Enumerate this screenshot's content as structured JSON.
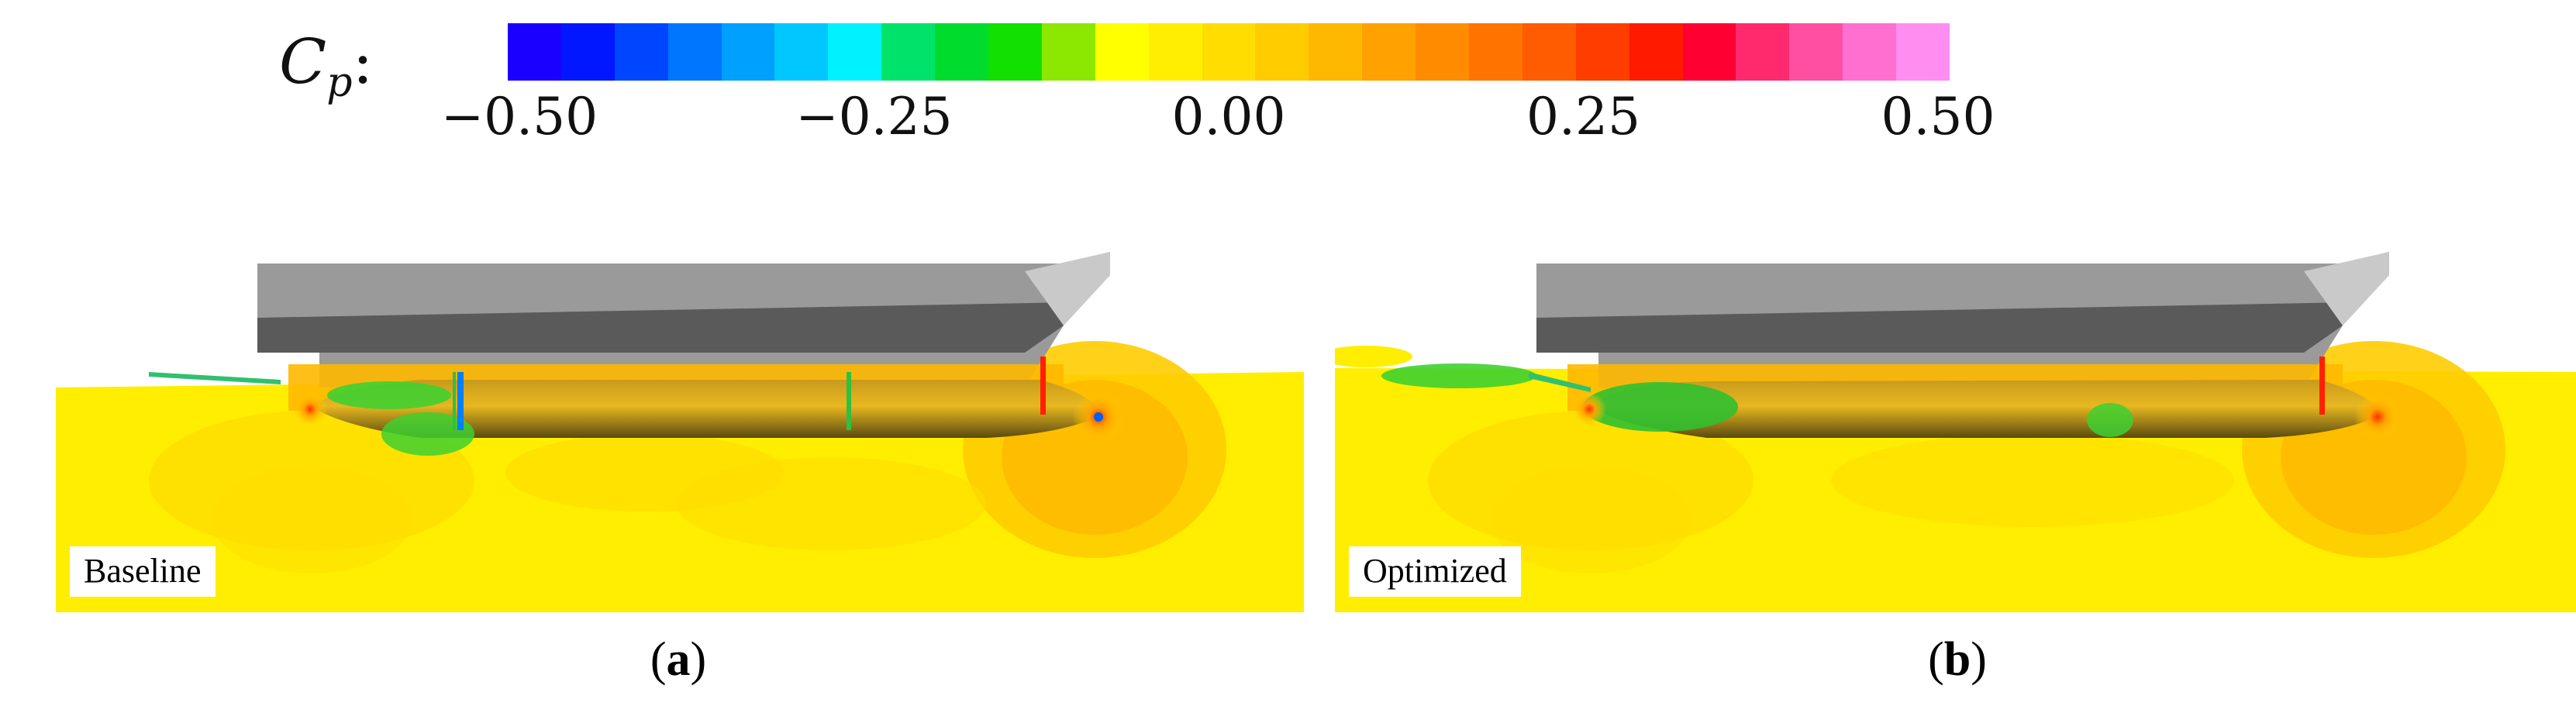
{
  "colorbar": {
    "label": "Cp:",
    "label_main": "C",
    "label_sub": "p",
    "label_colon": ":",
    "ticks": [
      "−0.50",
      "−0.25",
      "0.00",
      "0.25",
      "0.50"
    ],
    "range": [
      -0.5,
      0.5
    ],
    "colors": [
      "#1a00ff",
      "#0017ff",
      "#0046ff",
      "#0076ff",
      "#00a0ff",
      "#00c8ff",
      "#00f2ff",
      "#00e36a",
      "#00dc2e",
      "#12e000",
      "#8ce800",
      "#ffff00",
      "#ffee00",
      "#ffdd00",
      "#ffcc00",
      "#ffb800",
      "#ffa100",
      "#ff8c00",
      "#ff7400",
      "#ff5b00",
      "#ff3d00",
      "#ff1a00",
      "#ff0033",
      "#ff2a6e",
      "#ff4fa2",
      "#ff6fd0",
      "#ff8ef0"
    ]
  },
  "panels": [
    {
      "id": "a",
      "label": "Baseline",
      "caption": "a"
    },
    {
      "id": "b",
      "label": "Optimized",
      "caption": "b"
    }
  ]
}
